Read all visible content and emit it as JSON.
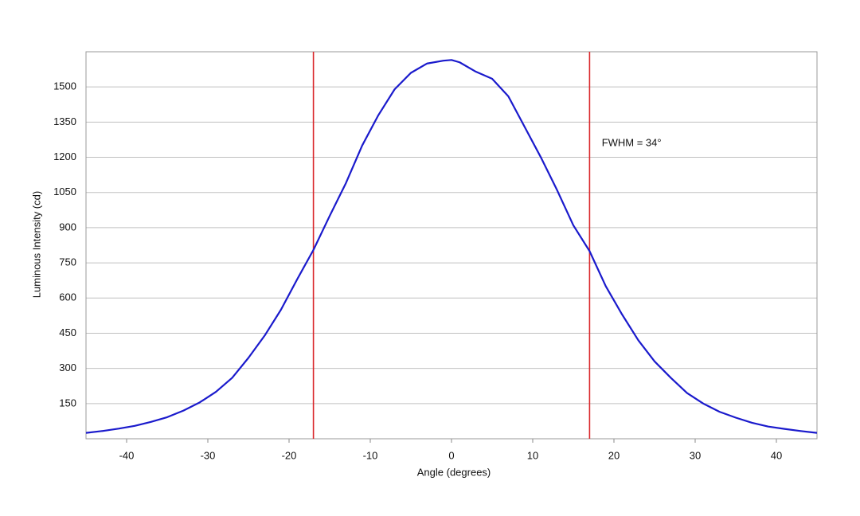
{
  "chart_data": {
    "type": "line",
    "x_label": "Angle (degrees)",
    "y_label": "Luminous Intensity (cd)",
    "x": [
      -45,
      -43,
      -41,
      -39,
      -37,
      -35,
      -33,
      -31,
      -29,
      -27,
      -25,
      -23,
      -21,
      -19,
      -17,
      -15,
      -13,
      -11,
      -9,
      -7,
      -5,
      -3,
      -1,
      0,
      1,
      3,
      5,
      7,
      9,
      11,
      13,
      15,
      17,
      19,
      21,
      23,
      25,
      27,
      29,
      31,
      33,
      35,
      37,
      39,
      41,
      43,
      45
    ],
    "values": [
      25,
      33,
      43,
      55,
      72,
      92,
      120,
      155,
      200,
      260,
      345,
      440,
      550,
      680,
      805,
      950,
      1090,
      1250,
      1380,
      1490,
      1560,
      1600,
      1612,
      1615,
      1605,
      1565,
      1535,
      1460,
      1330,
      1200,
      1060,
      910,
      800,
      650,
      530,
      420,
      330,
      260,
      195,
      150,
      115,
      90,
      68,
      52,
      42,
      33,
      25
    ],
    "color": "#1a1acc",
    "xlim": [
      -45,
      45
    ],
    "ylim": [
      0,
      1650
    ],
    "xticks": [
      -40,
      -30,
      -20,
      -10,
      0,
      10,
      20,
      30,
      40
    ],
    "yticks": [
      150,
      300,
      450,
      600,
      750,
      900,
      1050,
      1200,
      1350,
      1500
    ],
    "grid": true,
    "vlines": [
      -17,
      17
    ],
    "vline_color": "#d9262a",
    "annotation": {
      "text": "FWHM = 34°",
      "x": 18.5,
      "y": 1260
    }
  }
}
